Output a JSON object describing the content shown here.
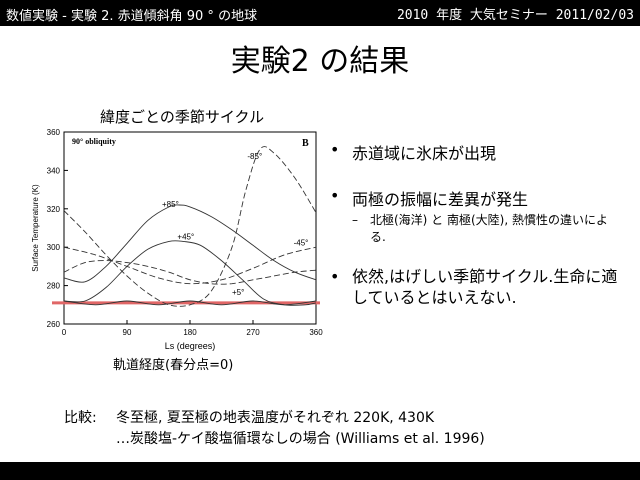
{
  "header": {
    "left": "数値実験 - 実験 2. 赤道傾斜角 90 ° の地球",
    "right": "2010 年度 大気セミナー 2011/02/03"
  },
  "slide": {
    "title": "実験2 の結果",
    "chart_title": "緯度ごとの季節サイクル",
    "x_caption": "軌道経度(春分点=0)"
  },
  "bullets": [
    {
      "marker": "•",
      "text": "赤道域に氷床が出現"
    },
    {
      "marker": "•",
      "text": "両極の振幅に差異が発生"
    },
    {
      "marker": "–",
      "text": "北極(海洋) と 南極(大陸), 熱慣性の違いによる."
    },
    {
      "marker": "•",
      "text": "依然,はげしい季節サイクル.生命に適しているとはいえない."
    }
  ],
  "compare": {
    "label": "比較:",
    "line1": "冬至極, 夏至極の地表温度がそれぞれ 220K, 430K",
    "line2": "…炭酸塩-ケイ酸塩循環なしの場合 (Williams et al. 1996)"
  },
  "colors": {
    "highlight_line": "#e06666",
    "bars": "#000000"
  },
  "chart_data": {
    "type": "line",
    "inner_title": "90° obliquity",
    "panel_label": "B",
    "xlabel": "Ls (degrees)",
    "ylabel": "Surface Temperature (K)",
    "xlim": [
      0,
      360
    ],
    "ylim": [
      260,
      360
    ],
    "xticks": [
      0,
      90,
      180,
      270,
      360
    ],
    "yticks": [
      260,
      280,
      300,
      320,
      340,
      360
    ],
    "highlight_y": 271,
    "series": [
      {
        "name": "+85°",
        "label_at": [
          140,
          321
        ],
        "style": "solid",
        "x": [
          0,
          30,
          60,
          90,
          120,
          150,
          165,
          180,
          210,
          240,
          270,
          300,
          330,
          360
        ],
        "y": [
          284,
          282,
          290,
          302,
          314,
          321,
          322,
          321,
          316,
          309,
          301,
          293,
          287,
          283
        ]
      },
      {
        "name": "+45°",
        "label_at": [
          162,
          304
        ],
        "style": "solid",
        "x": [
          0,
          30,
          60,
          90,
          120,
          150,
          170,
          195,
          225,
          255,
          285,
          315,
          345,
          360
        ],
        "y": [
          272,
          272,
          279,
          290,
          299,
          303,
          303,
          301,
          293,
          283,
          273,
          270,
          270,
          271
        ]
      },
      {
        "name": "+5°",
        "label_at": [
          240,
          275
        ],
        "style": "solid",
        "x": [
          0,
          45,
          90,
          135,
          180,
          225,
          270,
          315,
          360
        ],
        "y": [
          272,
          270,
          272,
          270,
          272,
          270,
          272,
          270,
          272
        ]
      },
      {
        "name": "-85°",
        "label_at": [
          262,
          346
        ],
        "style": "dashed",
        "x": [
          0,
          30,
          60,
          90,
          120,
          150,
          180,
          210,
          240,
          260,
          280,
          300,
          330,
          360
        ],
        "y": [
          319,
          308,
          296,
          285,
          276,
          270,
          270,
          277,
          300,
          330,
          351,
          349,
          336,
          318
        ]
      },
      {
        "name": "-45°",
        "label_at": [
          328,
          301
        ],
        "style": "dashed",
        "x": [
          0,
          45,
          90,
          135,
          180,
          225,
          270,
          315,
          360
        ],
        "y": [
          300,
          296,
          290,
          284,
          281,
          283,
          289,
          296,
          300
        ]
      },
      {
        "name": "",
        "label_at": null,
        "style": "dashed",
        "x": [
          0,
          30,
          60,
          90,
          120,
          150,
          180,
          210,
          240,
          270,
          300,
          330,
          360
        ],
        "y": [
          287,
          292,
          293,
          292,
          290,
          287,
          283,
          281,
          281,
          283,
          285,
          287,
          288
        ]
      }
    ]
  }
}
